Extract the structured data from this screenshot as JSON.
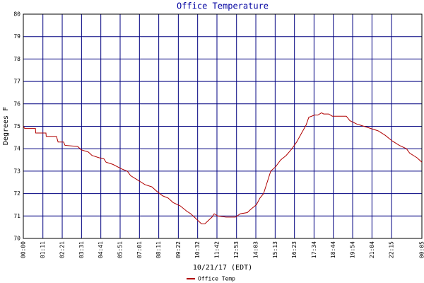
{
  "chart_data": {
    "type": "line",
    "title": "Office Temperature",
    "y_label": "Degrees F",
    "x_label": "10/21/17 (EDT)",
    "grid": true,
    "legend": "bottom-left",
    "xlim": [
      0,
      1445
    ],
    "ylim": [
      70,
      80
    ],
    "yticks": [
      70,
      71,
      72,
      73,
      74,
      75,
      76,
      77,
      78,
      79,
      80
    ],
    "xticks": [
      {
        "value": 0,
        "label": "00:00"
      },
      {
        "value": 71,
        "label": "01:11"
      },
      {
        "value": 141,
        "label": "02:21"
      },
      {
        "value": 211,
        "label": "03:31"
      },
      {
        "value": 281,
        "label": "04:41"
      },
      {
        "value": 351,
        "label": "05:51"
      },
      {
        "value": 421,
        "label": "07:01"
      },
      {
        "value": 491,
        "label": "08:11"
      },
      {
        "value": 562,
        "label": "09:22"
      },
      {
        "value": 632,
        "label": "10:32"
      },
      {
        "value": 702,
        "label": "11:42"
      },
      {
        "value": 773,
        "label": "12:53"
      },
      {
        "value": 843,
        "label": "14:03"
      },
      {
        "value": 913,
        "label": "15:13"
      },
      {
        "value": 983,
        "label": "16:23"
      },
      {
        "value": 1054,
        "label": "17:34"
      },
      {
        "value": 1124,
        "label": "18:44"
      },
      {
        "value": 1194,
        "label": "19:54"
      },
      {
        "value": 1264,
        "label": "21:04"
      },
      {
        "value": 1335,
        "label": "22:15"
      },
      {
        "value": 1445,
        "label": "00:05"
      }
    ],
    "x": [
      0,
      5,
      44,
      45,
      82,
      83,
      120,
      126,
      146,
      151,
      197,
      210,
      236,
      249,
      274,
      292,
      300,
      325,
      356,
      377,
      389,
      415,
      441,
      466,
      484,
      505,
      525,
      543,
      569,
      594,
      607,
      620,
      633,
      646,
      658,
      671,
      684,
      692,
      705,
      735,
      769,
      787,
      812,
      825,
      845,
      858,
      871,
      884,
      897,
      915,
      933,
      953,
      974,
      991,
      1009,
      1025,
      1035,
      1056,
      1068,
      1081,
      1089,
      1107,
      1120,
      1171,
      1184,
      1209,
      1235,
      1286,
      1312,
      1337,
      1363,
      1389,
      1401,
      1427,
      1445
    ],
    "series": [
      {
        "name": "Office Temp",
        "color": "#b00000",
        "values": [
          75.0,
          74.9,
          74.9,
          74.7,
          74.7,
          74.55,
          74.55,
          74.3,
          74.3,
          74.15,
          74.1,
          73.95,
          73.85,
          73.7,
          73.6,
          73.55,
          73.4,
          73.3,
          73.1,
          73.0,
          72.8,
          72.6,
          72.4,
          72.3,
          72.1,
          71.9,
          71.8,
          71.6,
          71.45,
          71.2,
          71.1,
          70.95,
          70.8,
          70.65,
          70.65,
          70.8,
          70.95,
          71.1,
          71.0,
          70.95,
          70.95,
          71.1,
          71.15,
          71.3,
          71.5,
          71.8,
          72.0,
          72.5,
          73.0,
          73.2,
          73.5,
          73.7,
          74.0,
          74.3,
          74.7,
          75.05,
          75.4,
          75.5,
          75.5,
          75.6,
          75.55,
          75.55,
          75.45,
          75.45,
          75.25,
          75.1,
          75.0,
          74.8,
          74.6,
          74.35,
          74.15,
          74.0,
          73.8,
          73.6,
          73.4
        ]
      }
    ]
  }
}
